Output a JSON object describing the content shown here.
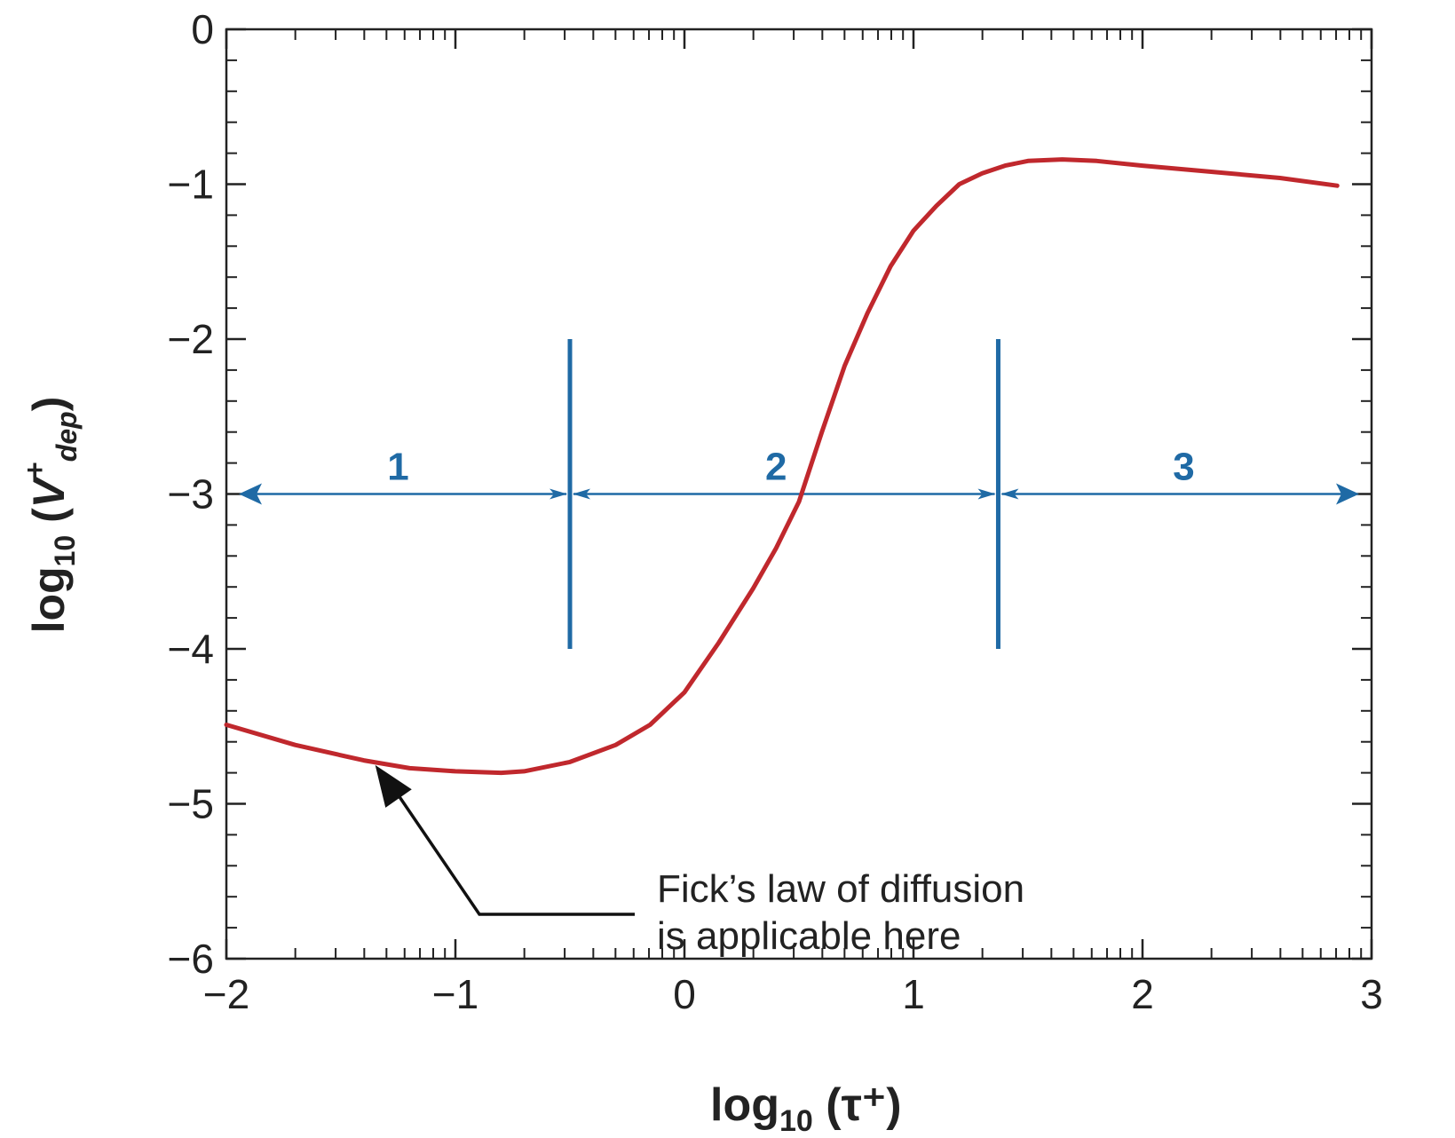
{
  "colors": {
    "curve": "#c0282d",
    "regions": "#1f6aa5",
    "axis": "#222222",
    "annotation": "#111111"
  },
  "chart_data": {
    "type": "line",
    "xlim": [
      -2,
      3
    ],
    "ylim": [
      -6,
      0
    ],
    "x_ticks": [
      -2,
      -1,
      0,
      1,
      2,
      3
    ],
    "y_ticks": [
      0,
      -1,
      -2,
      -3,
      -4,
      -5,
      -6
    ],
    "x_tick_labels": [
      "−2",
      "−1",
      "0",
      "1",
      "2",
      "3"
    ],
    "y_tick_labels": [
      "0",
      "−1",
      "−2",
      "−3",
      "−4",
      "−5",
      "−6"
    ],
    "x_minor_ticks_per_decade_log": true,
    "xlabel": {
      "base": "log",
      "sub": "10",
      "rest": " (τ⁺)"
    },
    "ylabel": {
      "base": "log",
      "sub": "10",
      "open": " (",
      "var": "V",
      "sup": "+",
      "subvar": "dep",
      "close": ")"
    },
    "series": [
      {
        "x": [
          -2.0,
          -1.7,
          -1.4,
          -1.2,
          -1.0,
          -0.8,
          -0.7,
          -0.5,
          -0.3,
          -0.15,
          0.0,
          0.15,
          0.3,
          0.4,
          0.5,
          0.6,
          0.7,
          0.8,
          0.9,
          1.0,
          1.1,
          1.2,
          1.3,
          1.4,
          1.5,
          1.65,
          1.8,
          2.0,
          2.3,
          2.6,
          2.85
        ],
        "y": [
          -4.49,
          -4.62,
          -4.72,
          -4.77,
          -4.79,
          -4.8,
          -4.79,
          -4.73,
          -4.62,
          -4.49,
          -4.28,
          -3.96,
          -3.61,
          -3.35,
          -3.05,
          -2.6,
          -2.17,
          -1.83,
          -1.53,
          -1.3,
          -1.14,
          -1.0,
          -0.93,
          -0.88,
          -0.85,
          -0.84,
          -0.85,
          -0.88,
          -0.92,
          -0.96,
          -1.01
        ]
      }
    ],
    "regions": {
      "dividers_x": [
        -0.5,
        1.37
      ],
      "divider_y_range": [
        -4.0,
        -2.0
      ],
      "arrow_y": -3.0,
      "span": [
        -2.0,
        3.0
      ],
      "labels": [
        {
          "text": "1",
          "x": -1.25
        },
        {
          "text": "2",
          "x": 0.4
        },
        {
          "text": "3",
          "x": 2.18
        }
      ]
    },
    "annotation": {
      "lines": [
        "Fick’s law of diffusion",
        "is applicable here"
      ],
      "arrow_to": [
        -1.35,
        -4.75
      ]
    }
  }
}
